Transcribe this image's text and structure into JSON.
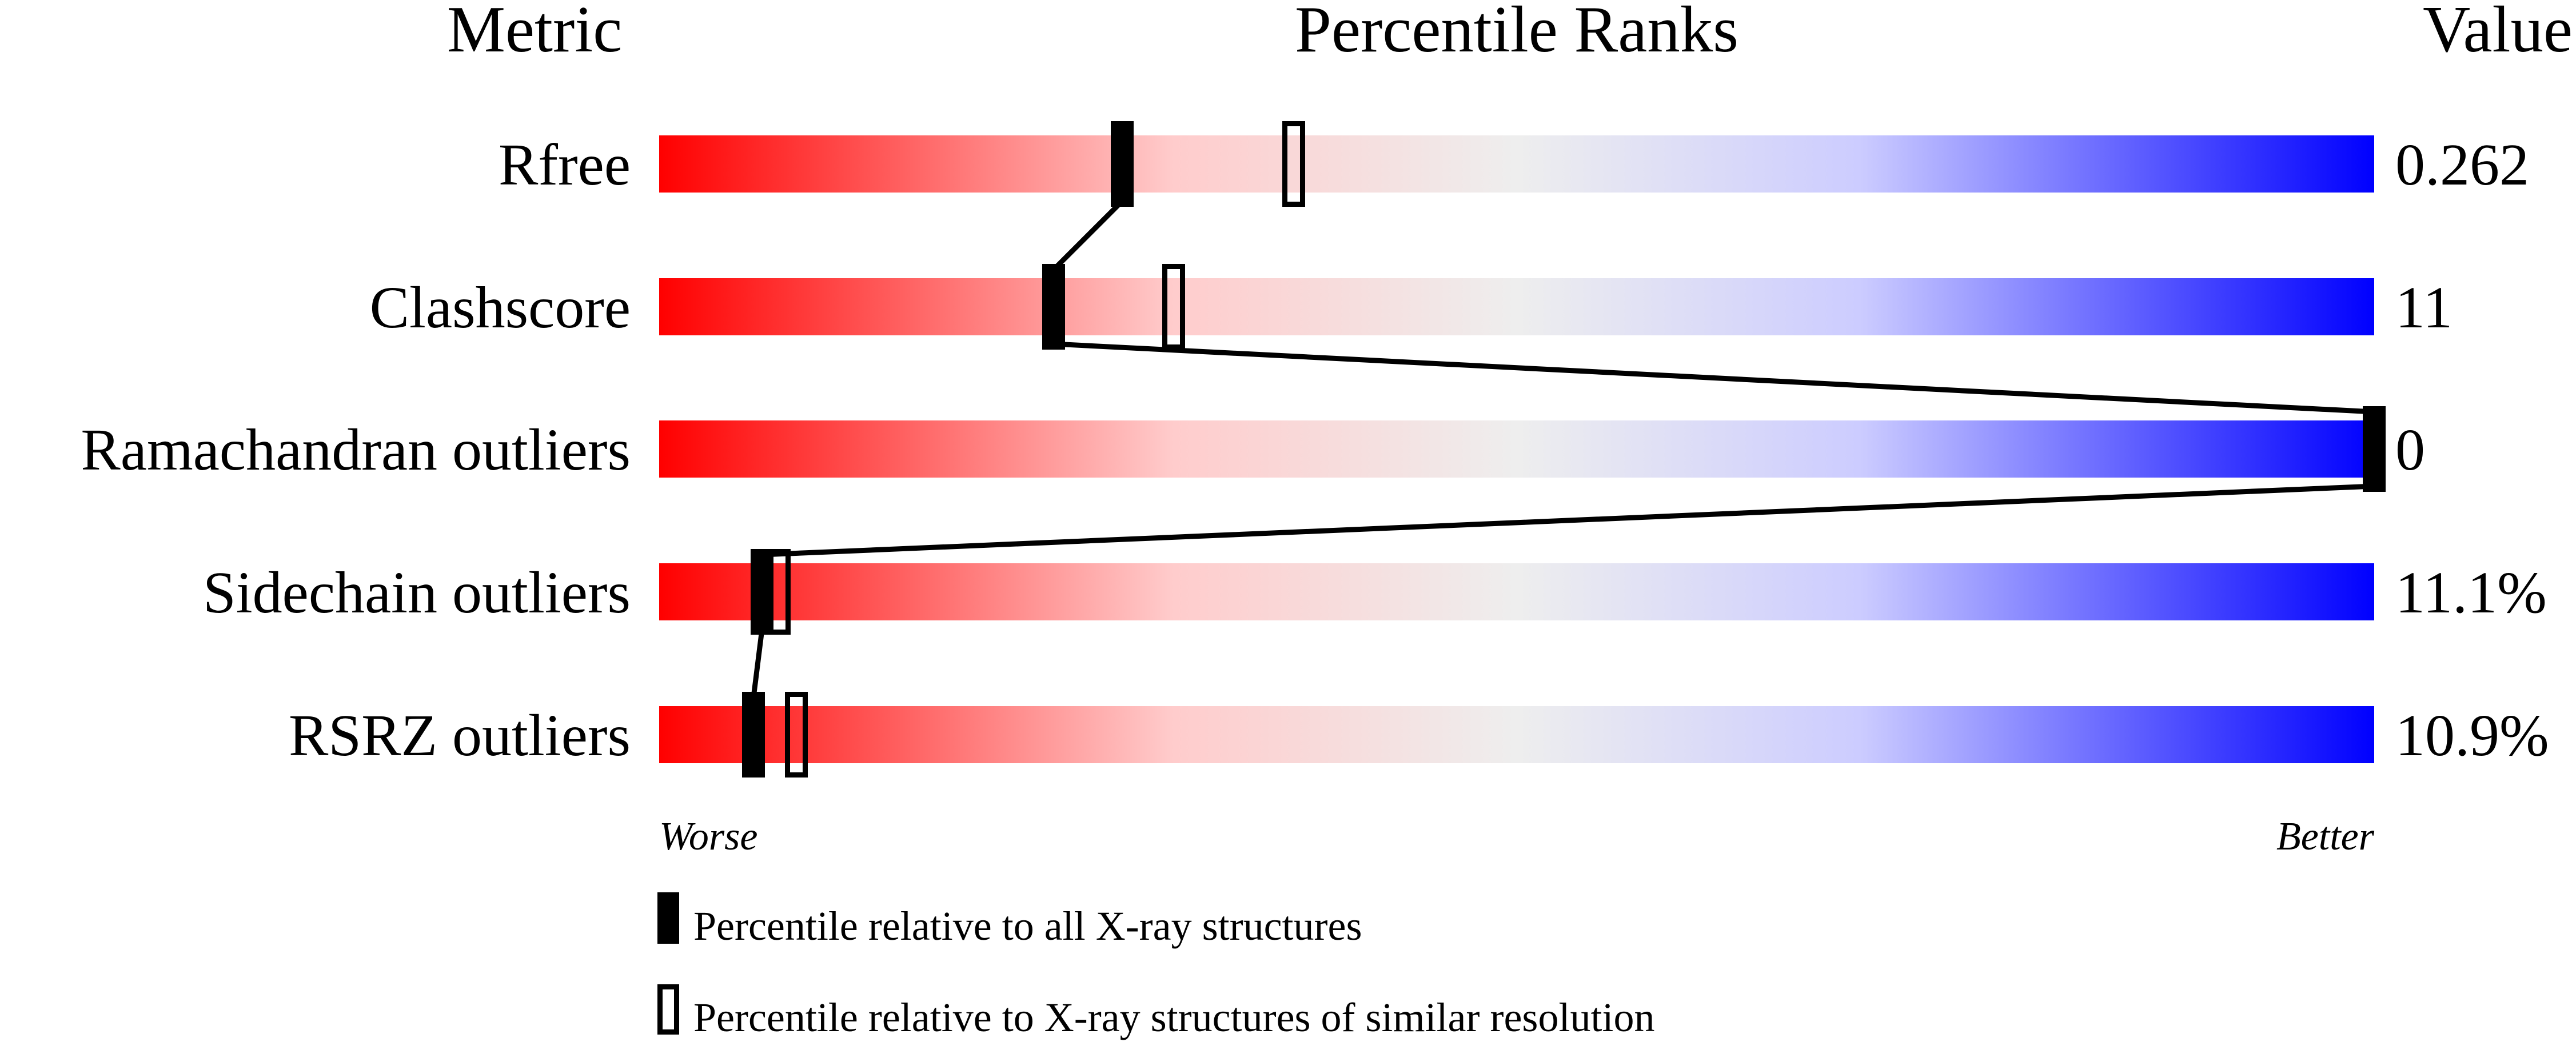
{
  "chart_data": {
    "type": "percentile-slider",
    "headers": {
      "metric": "Metric",
      "ranks": "Percentile Ranks",
      "value": "Value"
    },
    "axis": {
      "worse": "Worse",
      "better": "Better",
      "range": [
        0,
        100
      ]
    },
    "gradient_colors": [
      "#ff0000",
      "#ffcccc",
      "#eeeeee",
      "#ccccff",
      "#0000ff"
    ],
    "metrics": [
      {
        "name": "Rfree",
        "value": "0.262",
        "percentile_all": 27,
        "percentile_similar": 37
      },
      {
        "name": "Clashscore",
        "value": "11",
        "percentile_all": 23,
        "percentile_similar": 30
      },
      {
        "name": "Ramachandran outliers",
        "value": "0",
        "percentile_all": 100,
        "percentile_similar": null
      },
      {
        "name": "Sidechain outliers",
        "value": "11.1%",
        "percentile_all": 6,
        "percentile_similar": 7
      },
      {
        "name": "RSRZ outliers",
        "value": "10.9%",
        "percentile_all": 5.5,
        "percentile_similar": 8
      }
    ],
    "legend": [
      {
        "marker": "filled",
        "label": "Percentile relative to all X-ray structures"
      },
      {
        "marker": "open",
        "label": "Percentile relative to X-ray structures of similar resolution"
      }
    ]
  }
}
